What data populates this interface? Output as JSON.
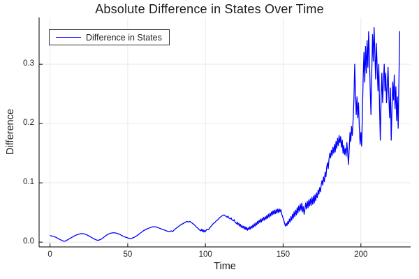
{
  "title": "Absolute Difference in States Over Time",
  "axes": {
    "x_label": "Time",
    "y_label": "Difference",
    "x_tick_labels": [
      "0",
      "50",
      "100",
      "150",
      "200"
    ],
    "y_tick_labels": [
      "0.0",
      "0.1",
      "0.2",
      "0.3"
    ]
  },
  "legend": {
    "label": "Difference in States",
    "position": "top-left"
  },
  "colors": {
    "line": "#0000ff",
    "grid": "#e9e9e9",
    "axis": "#2a2a2a",
    "text": "#1f1f1f",
    "background": "#ffffff"
  },
  "chart_data": {
    "type": "line",
    "title": "Absolute Difference in States Over Time",
    "xlabel": "Time",
    "ylabel": "Difference",
    "xlim": [
      -7,
      232
    ],
    "ylim": [
      -0.008,
      0.379
    ],
    "x_ticks": [
      0,
      50,
      100,
      150,
      200
    ],
    "y_ticks": [
      0.0,
      0.1,
      0.2,
      0.3
    ],
    "grid": true,
    "legend_position": "top-left",
    "series": [
      {
        "name": "Difference in States",
        "color": "#0000ff",
        "points": [
          [
            0,
            0.011
          ],
          [
            2,
            0.01
          ],
          [
            4,
            0.008
          ],
          [
            6,
            0.005
          ],
          [
            8,
            0.0025
          ],
          [
            9,
            0.0015
          ],
          [
            10,
            0.002
          ],
          [
            12,
            0.005
          ],
          [
            14,
            0.008
          ],
          [
            16,
            0.011
          ],
          [
            18,
            0.013
          ],
          [
            20,
            0.0145
          ],
          [
            22,
            0.014
          ],
          [
            24,
            0.012
          ],
          [
            26,
            0.009
          ],
          [
            28,
            0.006
          ],
          [
            30,
            0.0035
          ],
          [
            31,
            0.003
          ],
          [
            33,
            0.005
          ],
          [
            35,
            0.009
          ],
          [
            37,
            0.013
          ],
          [
            39,
            0.015
          ],
          [
            41,
            0.016
          ],
          [
            43,
            0.015
          ],
          [
            45,
            0.013
          ],
          [
            47,
            0.01
          ],
          [
            49,
            0.008
          ],
          [
            51,
            0.0065
          ],
          [
            52,
            0.006
          ],
          [
            54,
            0.008
          ],
          [
            56,
            0.011
          ],
          [
            58,
            0.015
          ],
          [
            60,
            0.019
          ],
          [
            62,
            0.022
          ],
          [
            64,
            0.024
          ],
          [
            66,
            0.026
          ],
          [
            68,
            0.026
          ],
          [
            70,
            0.024
          ],
          [
            72,
            0.022
          ],
          [
            74,
            0.02
          ],
          [
            76,
            0.018
          ],
          [
            77,
            0.018
          ],
          [
            78,
            0.019
          ],
          [
            79,
            0.018
          ],
          [
            80,
            0.021
          ],
          [
            82,
            0.025
          ],
          [
            84,
            0.029
          ],
          [
            86,
            0.032
          ],
          [
            88,
            0.035
          ],
          [
            89,
            0.034
          ],
          [
            90,
            0.035
          ],
          [
            91,
            0.033
          ],
          [
            92,
            0.031
          ],
          [
            93,
            0.029
          ],
          [
            94,
            0.026
          ],
          [
            95,
            0.024
          ],
          [
            96,
            0.021
          ],
          [
            97,
            0.019
          ],
          [
            97.5,
            0.022
          ],
          [
            98,
            0.018
          ],
          [
            98.5,
            0.021
          ],
          [
            99,
            0.017
          ],
          [
            99.5,
            0.02
          ],
          [
            100,
            0.018
          ],
          [
            101,
            0.022
          ],
          [
            102,
            0.021
          ],
          [
            103,
            0.025
          ],
          [
            104,
            0.028
          ],
          [
            105,
            0.031
          ],
          [
            106,
            0.033
          ],
          [
            107,
            0.036
          ],
          [
            108,
            0.038
          ],
          [
            109,
            0.041
          ],
          [
            110,
            0.043
          ],
          [
            111,
            0.045
          ],
          [
            112,
            0.046
          ],
          [
            113,
            0.044
          ],
          [
            114,
            0.042
          ],
          [
            114.5,
            0.044
          ],
          [
            115,
            0.041
          ],
          [
            116,
            0.039
          ],
          [
            116.5,
            0.041
          ],
          [
            117,
            0.038
          ],
          [
            118,
            0.036
          ],
          [
            118.5,
            0.038
          ],
          [
            119,
            0.034
          ],
          [
            120,
            0.031
          ],
          [
            120.5,
            0.034
          ],
          [
            121,
            0.029
          ],
          [
            121.5,
            0.032
          ],
          [
            122,
            0.027
          ],
          [
            122.5,
            0.03
          ],
          [
            123,
            0.025
          ],
          [
            123.5,
            0.028
          ],
          [
            124,
            0.024
          ],
          [
            124.5,
            0.027
          ],
          [
            125,
            0.022
          ],
          [
            125.5,
            0.026
          ],
          [
            126,
            0.021
          ],
          [
            126.5,
            0.025
          ],
          [
            127,
            0.02
          ],
          [
            127.5,
            0.024
          ],
          [
            128,
            0.021
          ],
          [
            128.5,
            0.026
          ],
          [
            129,
            0.022
          ],
          [
            129.5,
            0.027
          ],
          [
            130,
            0.024
          ],
          [
            130.5,
            0.029
          ],
          [
            131,
            0.025
          ],
          [
            131.5,
            0.031
          ],
          [
            132,
            0.027
          ],
          [
            132.5,
            0.033
          ],
          [
            133,
            0.029
          ],
          [
            133.5,
            0.035
          ],
          [
            134,
            0.031
          ],
          [
            134.5,
            0.037
          ],
          [
            135,
            0.033
          ],
          [
            135.5,
            0.039
          ],
          [
            136,
            0.034
          ],
          [
            136.5,
            0.04
          ],
          [
            137,
            0.036
          ],
          [
            137.5,
            0.042
          ],
          [
            138,
            0.037
          ],
          [
            138.5,
            0.043
          ],
          [
            139,
            0.039
          ],
          [
            139.5,
            0.045
          ],
          [
            140,
            0.04
          ],
          [
            140.5,
            0.047
          ],
          [
            141,
            0.042
          ],
          [
            141.5,
            0.049
          ],
          [
            142,
            0.044
          ],
          [
            142.5,
            0.051
          ],
          [
            143,
            0.046
          ],
          [
            143.5,
            0.053
          ],
          [
            144,
            0.047
          ],
          [
            144.5,
            0.054
          ],
          [
            145,
            0.048
          ],
          [
            145.5,
            0.055
          ],
          [
            146,
            0.049
          ],
          [
            146.5,
            0.056
          ],
          [
            147,
            0.05
          ],
          [
            147.5,
            0.056
          ],
          [
            148,
            0.051
          ],
          [
            148.5,
            0.055
          ],
          [
            149,
            0.048
          ],
          [
            149.5,
            0.044
          ],
          [
            150,
            0.04
          ],
          [
            150.5,
            0.036
          ],
          [
            151,
            0.031
          ],
          [
            151.5,
            0.027
          ],
          [
            152,
            0.032
          ],
          [
            152.5,
            0.028
          ],
          [
            153,
            0.035
          ],
          [
            153.5,
            0.031
          ],
          [
            154,
            0.039
          ],
          [
            154.5,
            0.034
          ],
          [
            155,
            0.043
          ],
          [
            155.5,
            0.037
          ],
          [
            156,
            0.047
          ],
          [
            156.5,
            0.04
          ],
          [
            157,
            0.051
          ],
          [
            157.5,
            0.043
          ],
          [
            158,
            0.054
          ],
          [
            158.5,
            0.046
          ],
          [
            159,
            0.058
          ],
          [
            159.5,
            0.049
          ],
          [
            160,
            0.061
          ],
          [
            160.5,
            0.052
          ],
          [
            161,
            0.064
          ],
          [
            161.5,
            0.054
          ],
          [
            162,
            0.066
          ],
          [
            162.5,
            0.051
          ],
          [
            163,
            0.06
          ],
          [
            163.5,
            0.047
          ],
          [
            164,
            0.055
          ],
          [
            164.5,
            0.066
          ],
          [
            165,
            0.056
          ],
          [
            165.5,
            0.069
          ],
          [
            166,
            0.058
          ],
          [
            166.5,
            0.071
          ],
          [
            167,
            0.061
          ],
          [
            167.5,
            0.073
          ],
          [
            168,
            0.062
          ],
          [
            168.5,
            0.076
          ],
          [
            169,
            0.064
          ],
          [
            169.5,
            0.078
          ],
          [
            170,
            0.066
          ],
          [
            170.5,
            0.08
          ],
          [
            171,
            0.07
          ],
          [
            171.5,
            0.083
          ],
          [
            172,
            0.075
          ],
          [
            172.5,
            0.088
          ],
          [
            173,
            0.081
          ],
          [
            173.5,
            0.092
          ],
          [
            174,
            0.085
          ],
          [
            174.5,
            0.097
          ],
          [
            175,
            0.104
          ],
          [
            175.5,
            0.096
          ],
          [
            176,
            0.11
          ],
          [
            176.5,
            0.102
          ],
          [
            177,
            0.118
          ],
          [
            177.5,
            0.11
          ],
          [
            178,
            0.126
          ],
          [
            178.5,
            0.134
          ],
          [
            179,
            0.124
          ],
          [
            179.5,
            0.14
          ],
          [
            180,
            0.15
          ],
          [
            180.5,
            0.142
          ],
          [
            181,
            0.155
          ],
          [
            181.5,
            0.146
          ],
          [
            182,
            0.16
          ],
          [
            182.5,
            0.15
          ],
          [
            183,
            0.165
          ],
          [
            183.5,
            0.152
          ],
          [
            184,
            0.17
          ],
          [
            184.5,
            0.158
          ],
          [
            185,
            0.175
          ],
          [
            185.5,
            0.163
          ],
          [
            186,
            0.18
          ],
          [
            186.5,
            0.168
          ],
          [
            187,
            0.178
          ],
          [
            187.5,
            0.16
          ],
          [
            188,
            0.172
          ],
          [
            188.5,
            0.15
          ],
          [
            189,
            0.163
          ],
          [
            189.5,
            0.148
          ],
          [
            190,
            0.158
          ],
          [
            190.5,
            0.145
          ],
          [
            191,
            0.168
          ],
          [
            191.5,
            0.152
          ],
          [
            192,
            0.131
          ],
          [
            192.5,
            0.158
          ],
          [
            193,
            0.185
          ],
          [
            193.5,
            0.17
          ],
          [
            194,
            0.195
          ],
          [
            194.5,
            0.18
          ],
          [
            195,
            0.205
          ],
          [
            195.5,
            0.24
          ],
          [
            196,
            0.3
          ],
          [
            196.5,
            0.255
          ],
          [
            197,
            0.215
          ],
          [
            197.5,
            0.245
          ],
          [
            198,
            0.21
          ],
          [
            198.5,
            0.235
          ],
          [
            199,
            0.195
          ],
          [
            199.5,
            0.165
          ],
          [
            200,
            0.185
          ],
          [
            200.5,
            0.162
          ],
          [
            201,
            0.22
          ],
          [
            201.5,
            0.28
          ],
          [
            202,
            0.32
          ],
          [
            202.5,
            0.27
          ],
          [
            203,
            0.33
          ],
          [
            203.5,
            0.285
          ],
          [
            204,
            0.34
          ],
          [
            204.5,
            0.295
          ],
          [
            205,
            0.355
          ],
          [
            205.5,
            0.31
          ],
          [
            206,
            0.26
          ],
          [
            206.5,
            0.215
          ],
          [
            207,
            0.29
          ],
          [
            207.5,
            0.35
          ],
          [
            208,
            0.305
          ],
          [
            208.5,
            0.362
          ],
          [
            209,
            0.32
          ],
          [
            209.5,
            0.275
          ],
          [
            210,
            0.335
          ],
          [
            210.5,
            0.295
          ],
          [
            211,
            0.255
          ],
          [
            211.5,
            0.3
          ],
          [
            212,
            0.23
          ],
          [
            212.5,
            0.172
          ],
          [
            213,
            0.24
          ],
          [
            213.5,
            0.285
          ],
          [
            214,
            0.235
          ],
          [
            214.5,
            0.27
          ],
          [
            215,
            0.3
          ],
          [
            215.5,
            0.255
          ],
          [
            216,
            0.285
          ],
          [
            216.5,
            0.235
          ],
          [
            217,
            0.265
          ],
          [
            217.5,
            0.295
          ],
          [
            218,
            0.245
          ],
          [
            218.5,
            0.21
          ],
          [
            219,
            0.26
          ],
          [
            219.5,
            0.172
          ],
          [
            220,
            0.225
          ],
          [
            220.5,
            0.27
          ],
          [
            221,
            0.24
          ],
          [
            221.5,
            0.282
          ],
          [
            222,
            0.225
          ],
          [
            222.5,
            0.262
          ],
          [
            223,
            0.205
          ],
          [
            223.5,
            0.245
          ],
          [
            224,
            0.192
          ],
          [
            224.5,
            0.275
          ],
          [
            225,
            0.356
          ]
        ]
      }
    ]
  }
}
